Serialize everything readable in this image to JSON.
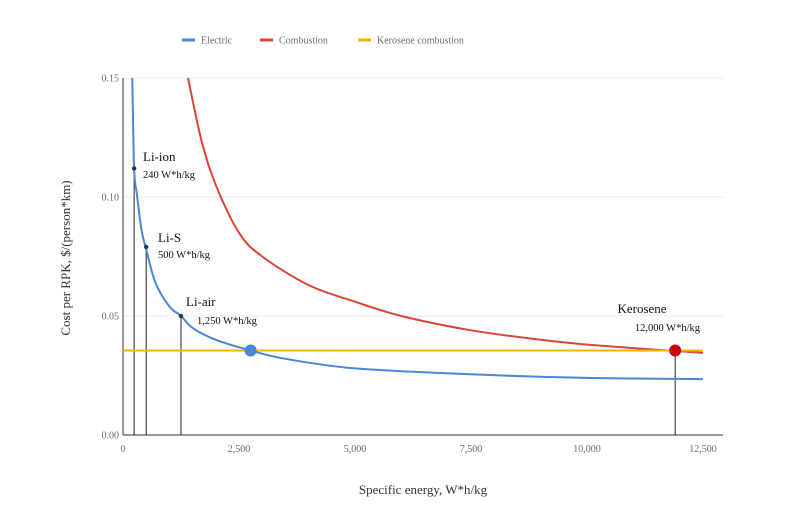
{
  "chart_data": {
    "type": "line",
    "title": "",
    "xlabel": "Specific energy, W*h/kg",
    "ylabel": "Cost per RPK, $/(person*km)",
    "xlim": [
      0,
      13000
    ],
    "ylim": [
      0,
      0.15
    ],
    "x_ticks": [
      {
        "value": 0,
        "label": "0"
      },
      {
        "value": 2500,
        "label": "2,500"
      },
      {
        "value": 5000,
        "label": "5,000"
      },
      {
        "value": 7500,
        "label": "7,500"
      },
      {
        "value": 10000,
        "label": "10,000"
      },
      {
        "value": 12500,
        "label": "12,500"
      }
    ],
    "y_ticks": [
      {
        "value": 0,
        "label": "0.00"
      },
      {
        "value": 0.05,
        "label": "0.05"
      },
      {
        "value": 0.1,
        "label": "0.10"
      },
      {
        "value": 0.15,
        "label": "0.15"
      }
    ],
    "legend": [
      {
        "name": "Electric",
        "color": "#4a87d6"
      },
      {
        "name": "Combustion",
        "color": "#db4437"
      },
      {
        "name": "Kerosene combustion",
        "color": "#f4b400"
      }
    ],
    "series": [
      {
        "name": "Electric",
        "color": "#4a87d6",
        "x": [
          200,
          240,
          300,
          400,
          500,
          700,
          1000,
          1250,
          1500,
          2000,
          2750,
          3500,
          5000,
          7500,
          10000,
          12500
        ],
        "y": [
          0.15,
          0.112,
          0.101,
          0.086,
          0.078,
          0.064,
          0.054,
          0.05,
          0.045,
          0.04,
          0.0355,
          0.032,
          0.028,
          0.0255,
          0.024,
          0.0235
        ]
      },
      {
        "name": "Combustion",
        "color": "#db4437",
        "x": [
          1400,
          1700,
          2000,
          2500,
          3000,
          4000,
          5000,
          6000,
          7500,
          9000,
          10000,
          11000,
          12000,
          12500
        ],
        "y": [
          0.15,
          0.123,
          0.105,
          0.085,
          0.075,
          0.063,
          0.056,
          0.05,
          0.044,
          0.04,
          0.038,
          0.0365,
          0.0352,
          0.0345
        ]
      },
      {
        "name": "Kerosene combustion",
        "color": "#f4b400",
        "x": [
          0,
          12500
        ],
        "y": [
          0.0355,
          0.0355
        ]
      }
    ],
    "markers": [
      {
        "name": "Li-ion",
        "value_label": "240 W*h/kg",
        "x": 240,
        "y": 0.112,
        "kind": "point"
      },
      {
        "name": "Li-S",
        "value_label": "500 W*h/kg",
        "x": 500,
        "y": 0.079,
        "kind": "point"
      },
      {
        "name": "Li-air",
        "value_label": "1,250 W*h/kg",
        "x": 1250,
        "y": 0.05,
        "kind": "point"
      },
      {
        "name": "Kerosene",
        "value_label": "12,000 W*h/kg",
        "x": 11900,
        "y": 0.0355,
        "kind": "dot",
        "color": "#cc0000"
      },
      {
        "name": "",
        "value_label": "",
        "x": 2750,
        "y": 0.0355,
        "kind": "dot",
        "color": "#4a87d6"
      }
    ]
  }
}
